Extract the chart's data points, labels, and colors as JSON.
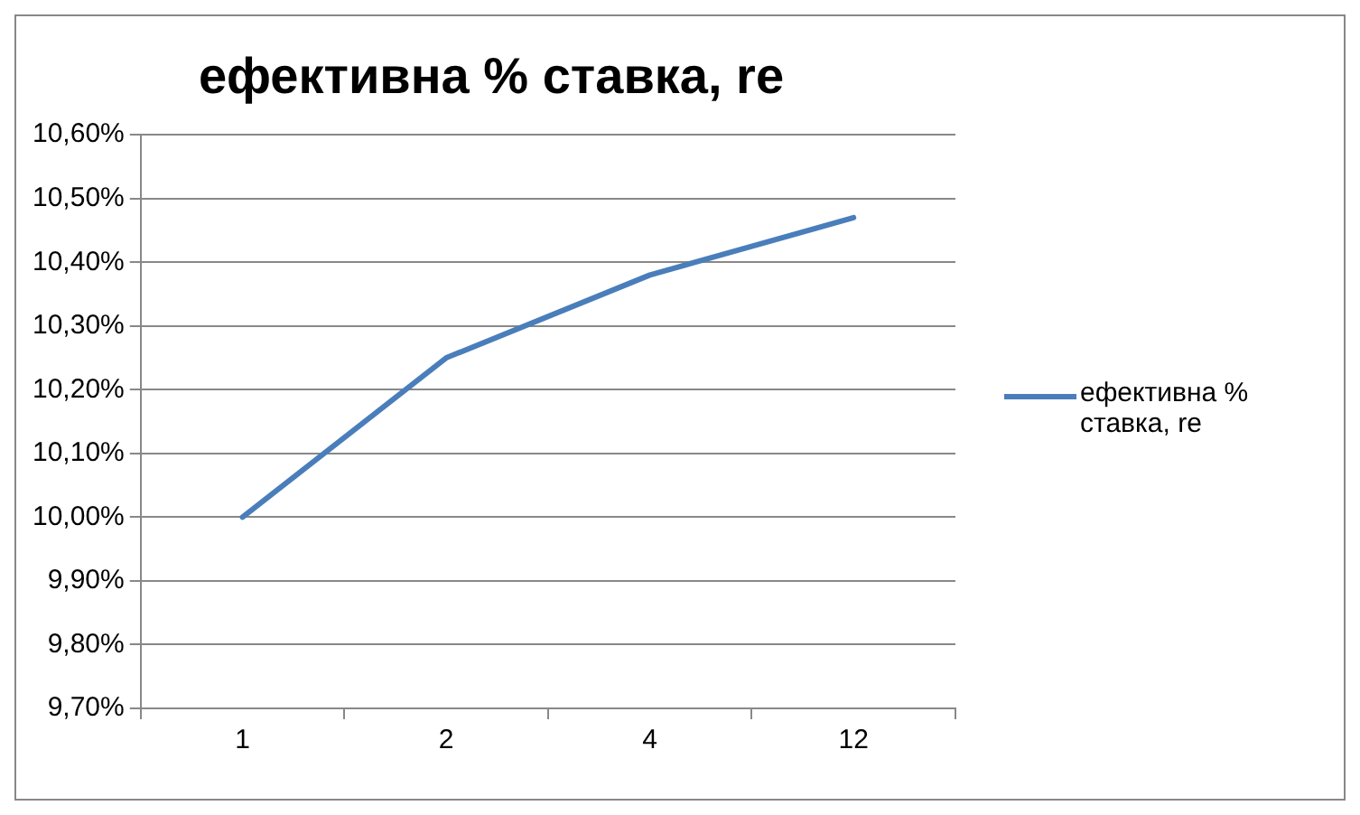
{
  "chart_data": {
    "type": "line",
    "title": "ефективна % ставка, re",
    "categories": [
      "1",
      "2",
      "4",
      "12"
    ],
    "series": [
      {
        "name": "ефективна % ставка, re",
        "color": "#4a7ebb",
        "values": [
          10.0,
          10.25,
          10.38,
          10.47
        ]
      }
    ],
    "ylim": [
      9.7,
      10.6
    ],
    "yticks": [
      {
        "value": 9.7,
        "label": "9,70%"
      },
      {
        "value": 9.8,
        "label": "9,80%"
      },
      {
        "value": 9.9,
        "label": "9,90%"
      },
      {
        "value": 10.0,
        "label": "10,00%"
      },
      {
        "value": 10.1,
        "label": "10,10%"
      },
      {
        "value": 10.2,
        "label": "10,20%"
      },
      {
        "value": 10.3,
        "label": "10,30%"
      },
      {
        "value": 10.4,
        "label": "10,40%"
      },
      {
        "value": 10.5,
        "label": "10,50%"
      },
      {
        "value": 10.6,
        "label": "10,60%"
      }
    ],
    "grid": "y",
    "legend": "right",
    "marker": "none",
    "line_style": "solid"
  }
}
